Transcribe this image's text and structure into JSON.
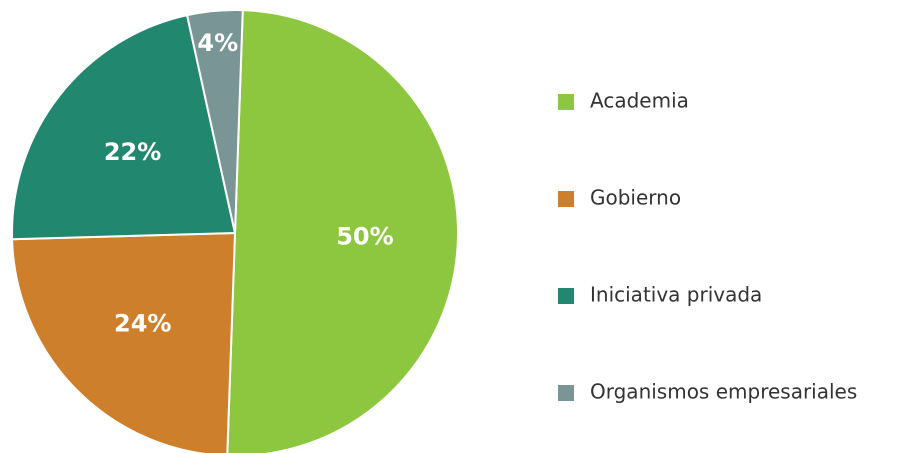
{
  "chart_data": {
    "type": "pie",
    "categories": [
      "Academia",
      "Gobierno",
      "Iniciativa privada",
      "Organismos empresariales"
    ],
    "values": [
      50,
      24,
      22,
      4
    ],
    "value_labels": [
      "50%",
      "24%",
      "22%",
      "4%"
    ],
    "colors": [
      "#8dc63f",
      "#cd7f2c",
      "#21876f",
      "#7a9595"
    ],
    "legend": "right"
  }
}
